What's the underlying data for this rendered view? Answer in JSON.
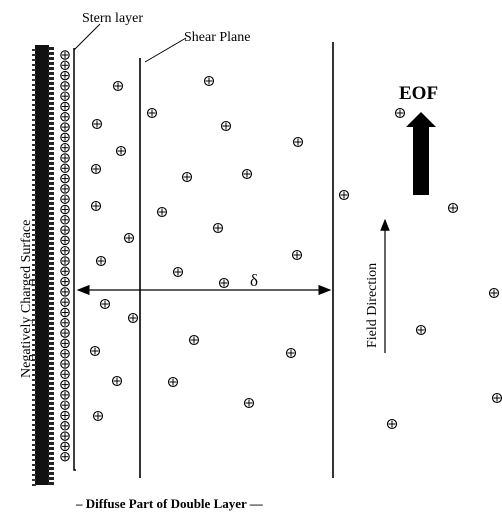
{
  "diagram": {
    "labels": {
      "stern_layer": "Stern layer",
      "shear_plane": "Shear Plane",
      "eof": "EOF",
      "surface": "Negatively Charged Surface",
      "field_direction": "Field Direction",
      "delta": "δ",
      "diffuse": "– Diffuse Part of Double Layer —"
    },
    "icons": {
      "positive_ion": "plus-in-circle",
      "eof_arrow": "thick-up-arrow",
      "field_arrow": "thin-up-arrow",
      "delta_arrow": "double-headed-arrow"
    },
    "colors": {
      "ink": "#000000",
      "background": "#ffffff"
    }
  }
}
